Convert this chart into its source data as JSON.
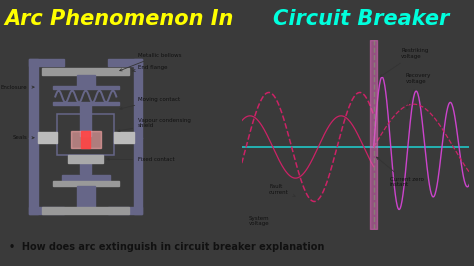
{
  "title_part1": "Arc Phenomenon In ",
  "title_part2": "Circuit Breaker",
  "title_color1": "#FFFF00",
  "title_color2": "#00FFDD",
  "title_bg": "#111111",
  "main_bg": "#3a3a3a",
  "subtitle": "•  How does arc extinguish in circuit breaker explanation",
  "subtitle_bg": "#e8e8e8",
  "left_panel_bg": "#f5f3ee",
  "right_panel_bg": "#f0f0d8",
  "diagram_line_color": "#666688",
  "arc_color": "#ff4444",
  "arc_light_color": "#ffaaaa",
  "wave_color": "#cc2266",
  "restrike_color": "#cc44cc",
  "zero_line_color": "#22bbbb",
  "zero_dash_color": "#229922",
  "pink_fill_color": "#dd66bb"
}
